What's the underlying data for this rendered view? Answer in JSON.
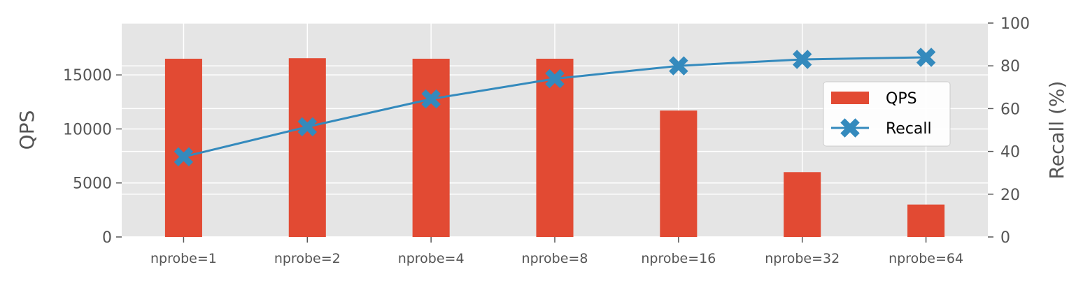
{
  "chart_data": {
    "type": "bar",
    "categories": [
      "nprobe=1",
      "nprobe=2",
      "nprobe=4",
      "nprobe=8",
      "nprobe=16",
      "nprobe=32",
      "nprobe=64"
    ],
    "series": [
      {
        "name": "QPS",
        "type": "bar",
        "axis": "left",
        "color": "#E24A33",
        "values": [
          16500,
          16550,
          16500,
          16500,
          11700,
          6000,
          3000
        ]
      },
      {
        "name": "Recall",
        "type": "line",
        "axis": "right",
        "color": "#348ABD",
        "marker": "X",
        "values": [
          37.5,
          51.5,
          64.5,
          74,
          80,
          83,
          84
        ]
      }
    ],
    "ylabel": "QPS",
    "ylabel_right": "Recall (%)",
    "ylim": [
      0,
      19800
    ],
    "ylim_right": [
      0,
      100
    ],
    "yticks": [
      0,
      5000,
      10000,
      15000
    ],
    "yticks_right": [
      0,
      20,
      40,
      60,
      80,
      100
    ],
    "grid": true,
    "legend": "center-right",
    "style": "ggplot",
    "background_color": "#E5E5E5"
  }
}
